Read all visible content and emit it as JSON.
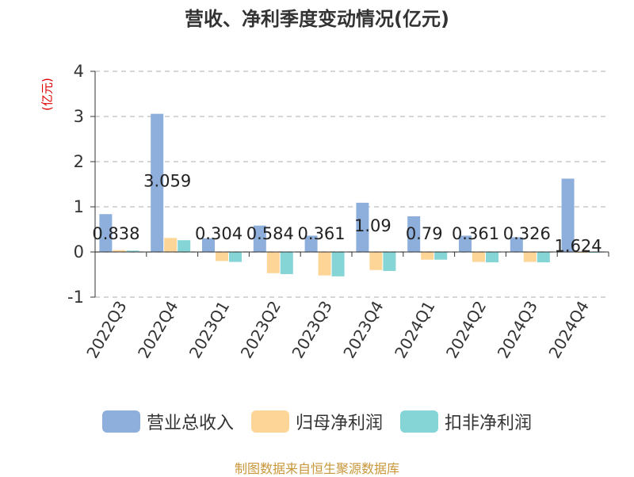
{
  "title": "营收、净利季度变动情况(亿元)",
  "unit_label": "(亿元)",
  "source": "制图数据来自恒生聚源数据库",
  "chart_data": {
    "type": "bar",
    "categories": [
      "2022Q3",
      "2022Q4",
      "2023Q1",
      "2023Q2",
      "2023Q3",
      "2023Q4",
      "2024Q1",
      "2024Q2",
      "2024Q3",
      "2024Q4"
    ],
    "series": [
      {
        "name": "营业总收入",
        "color": "#8eafdc",
        "values": [
          0.838,
          3.059,
          0.304,
          0.584,
          0.361,
          1.09,
          0.79,
          0.361,
          0.326,
          1.624
        ],
        "labels": [
          "0.838",
          "3.059",
          "0.304",
          "0.584",
          "0.361",
          "1.09",
          "0.79",
          "0.361",
          "0.326",
          "1.624"
        ]
      },
      {
        "name": "归母净利润",
        "color": "#fdd596",
        "values": [
          0.04,
          0.31,
          -0.2,
          -0.47,
          -0.52,
          -0.4,
          -0.17,
          -0.22,
          -0.22,
          -0.01
        ]
      },
      {
        "name": "扣非净利润",
        "color": "#85d4d6",
        "values": [
          0.03,
          0.26,
          -0.22,
          -0.49,
          -0.54,
          -0.42,
          -0.17,
          -0.23,
          -0.23,
          -0.01
        ]
      }
    ],
    "ylim": [
      -1,
      4
    ],
    "yticks": [
      "4",
      "3",
      "2",
      "1",
      "0",
      "-1"
    ],
    "ytick_values": [
      4,
      3,
      2,
      1,
      0,
      -1
    ],
    "grid": true,
    "legend_position": "bottom"
  }
}
